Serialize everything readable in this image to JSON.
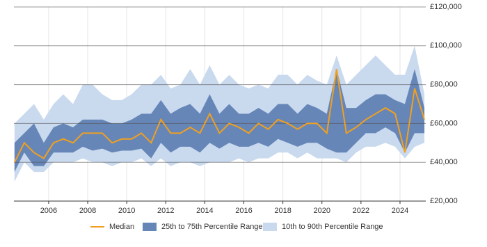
{
  "chart_data": {
    "type": "range-line",
    "x": [
      2004.25,
      2004.75,
      2005.25,
      2005.75,
      2006.25,
      2006.75,
      2007.25,
      2007.75,
      2008.25,
      2008.75,
      2009.25,
      2009.75,
      2010.25,
      2010.75,
      2011.25,
      2011.75,
      2012.25,
      2012.75,
      2013.25,
      2013.75,
      2014.25,
      2014.75,
      2015.25,
      2015.75,
      2016.25,
      2016.75,
      2017.25,
      2017.75,
      2018.25,
      2018.75,
      2019.25,
      2019.75,
      2020.25,
      2020.75,
      2021.25,
      2021.75,
      2022.25,
      2022.75,
      2023.25,
      2023.75,
      2024.25,
      2024.75,
      2025.25
    ],
    "series": [
      {
        "name": "10th to 90th Percentile Range",
        "color": "#c9d9ee",
        "low": [
          30000,
          40000,
          35000,
          35000,
          40000,
          40000,
          40000,
          42000,
          40000,
          40000,
          38000,
          40000,
          40000,
          42000,
          38000,
          42000,
          38000,
          40000,
          40000,
          38000,
          40000,
          40000,
          40000,
          42000,
          40000,
          42000,
          42000,
          45000,
          45000,
          42000,
          45000,
          42000,
          42000,
          42000,
          40000,
          45000,
          48000,
          48000,
          50000,
          48000,
          42000,
          48000,
          50000
        ],
        "high": [
          60000,
          65000,
          70000,
          62000,
          70000,
          75000,
          70000,
          80000,
          80000,
          75000,
          72000,
          72000,
          75000,
          80000,
          80000,
          85000,
          78000,
          80000,
          88000,
          80000,
          90000,
          80000,
          85000,
          80000,
          78000,
          80000,
          78000,
          85000,
          85000,
          80000,
          85000,
          82000,
          80000,
          95000,
          80000,
          85000,
          90000,
          95000,
          90000,
          85000,
          85000,
          100000,
          75000
        ]
      },
      {
        "name": "25th to 75th Percentile Range",
        "color": "#6686b8",
        "low": [
          35000,
          45000,
          38000,
          38000,
          45000,
          45000,
          45000,
          48000,
          46000,
          47000,
          45000,
          46000,
          46000,
          47000,
          42000,
          50000,
          45000,
          48000,
          48000,
          45000,
          50000,
          47000,
          50000,
          48000,
          48000,
          50000,
          48000,
          52000,
          50000,
          48000,
          50000,
          50000,
          47000,
          45000,
          45000,
          50000,
          55000,
          55000,
          58000,
          55000,
          45000,
          55000,
          55000
        ],
        "high": [
          50000,
          55000,
          60000,
          50000,
          58000,
          60000,
          58000,
          62000,
          62000,
          62000,
          60000,
          60000,
          62000,
          65000,
          65000,
          72000,
          65000,
          68000,
          70000,
          65000,
          75000,
          65000,
          70000,
          65000,
          65000,
          68000,
          65000,
          70000,
          70000,
          65000,
          70000,
          68000,
          65000,
          88000,
          68000,
          68000,
          72000,
          75000,
          75000,
          72000,
          70000,
          88000,
          68000
        ]
      },
      {
        "name": "Median",
        "color": "#f0a020",
        "values": [
          40000,
          50000,
          45000,
          42000,
          50000,
          52000,
          50000,
          55000,
          55000,
          55000,
          50000,
          52000,
          52000,
          55000,
          50000,
          62000,
          55000,
          55000,
          58000,
          55000,
          65000,
          55000,
          60000,
          58000,
          55000,
          60000,
          57000,
          62000,
          60000,
          57000,
          60000,
          60000,
          55000,
          88000,
          55000,
          58000,
          62000,
          65000,
          68000,
          65000,
          45000,
          78000,
          62000
        ]
      }
    ],
    "xlim": [
      2004.22,
      2025.32
    ],
    "xticks": [
      2006,
      2008,
      2010,
      2012,
      2014,
      2016,
      2018,
      2020,
      2022,
      2024
    ],
    "ylim": [
      20000,
      120000
    ],
    "yticks": [
      {
        "value": 20000,
        "label": "£20,000"
      },
      {
        "value": 40000,
        "label": "£40,000"
      },
      {
        "value": 60000,
        "label": "£60,000"
      },
      {
        "value": 80000,
        "label": "£80,000"
      },
      {
        "value": 100000,
        "label": "£100,000"
      },
      {
        "value": 120000,
        "label": "£120,000"
      }
    ],
    "grid": true
  }
}
